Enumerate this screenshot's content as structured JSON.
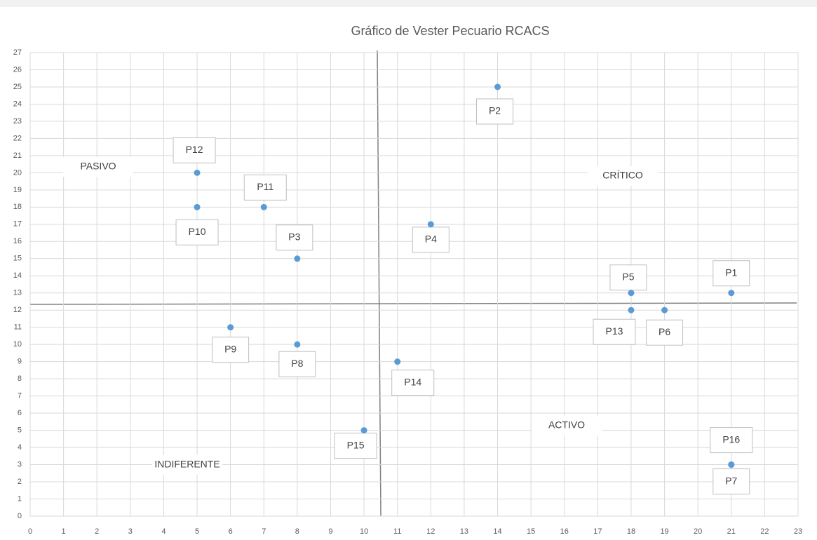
{
  "chart_data": {
    "type": "scatter",
    "title": "Gráfico de Vester Pecuario RCACS",
    "color": "#5b9bd5",
    "grid": true,
    "points": [
      {
        "label": "P1",
        "x": 21,
        "y": 13
      },
      {
        "label": "P2",
        "x": 14,
        "y": 25
      },
      {
        "label": "P3",
        "x": 8,
        "y": 15
      },
      {
        "label": "P4",
        "x": 12,
        "y": 17
      },
      {
        "label": "P5",
        "x": 18,
        "y": 13
      },
      {
        "label": "P6",
        "x": 19,
        "y": 12
      },
      {
        "label": "P7",
        "x": 21,
        "y": 3
      },
      {
        "label": "P8",
        "x": 8,
        "y": 10
      },
      {
        "label": "P9",
        "x": 6,
        "y": 11
      },
      {
        "label": "P10",
        "x": 5,
        "y": 18
      },
      {
        "label": "P11",
        "x": 7,
        "y": 18
      },
      {
        "label": "P12",
        "x": 5,
        "y": 20
      },
      {
        "label": "P13",
        "x": 18,
        "y": 12
      },
      {
        "label": "P14",
        "x": 11,
        "y": 9
      },
      {
        "label": "P15",
        "x": 10,
        "y": 5
      },
      {
        "label": "P16",
        "x": 21,
        "y": 3
      }
    ],
    "annotations": [
      "PASIVO",
      "CRÍTICO",
      "ACTIVO",
      "INDIFERENTE"
    ],
    "xlim": [
      0,
      23
    ],
    "xticks": [
      0,
      1,
      2,
      3,
      4,
      5,
      6,
      7,
      8,
      9,
      10,
      11,
      12,
      13,
      14,
      15,
      16,
      17,
      18,
      19,
      20,
      21,
      22,
      23
    ],
    "ylim": [
      0,
      27
    ],
    "yticks": [
      0,
      1,
      2,
      3,
      4,
      5,
      6,
      7,
      8,
      9,
      10,
      11,
      12,
      13,
      14,
      15,
      16,
      17,
      18,
      19,
      20,
      21,
      22,
      23,
      24,
      25,
      26,
      27
    ]
  }
}
